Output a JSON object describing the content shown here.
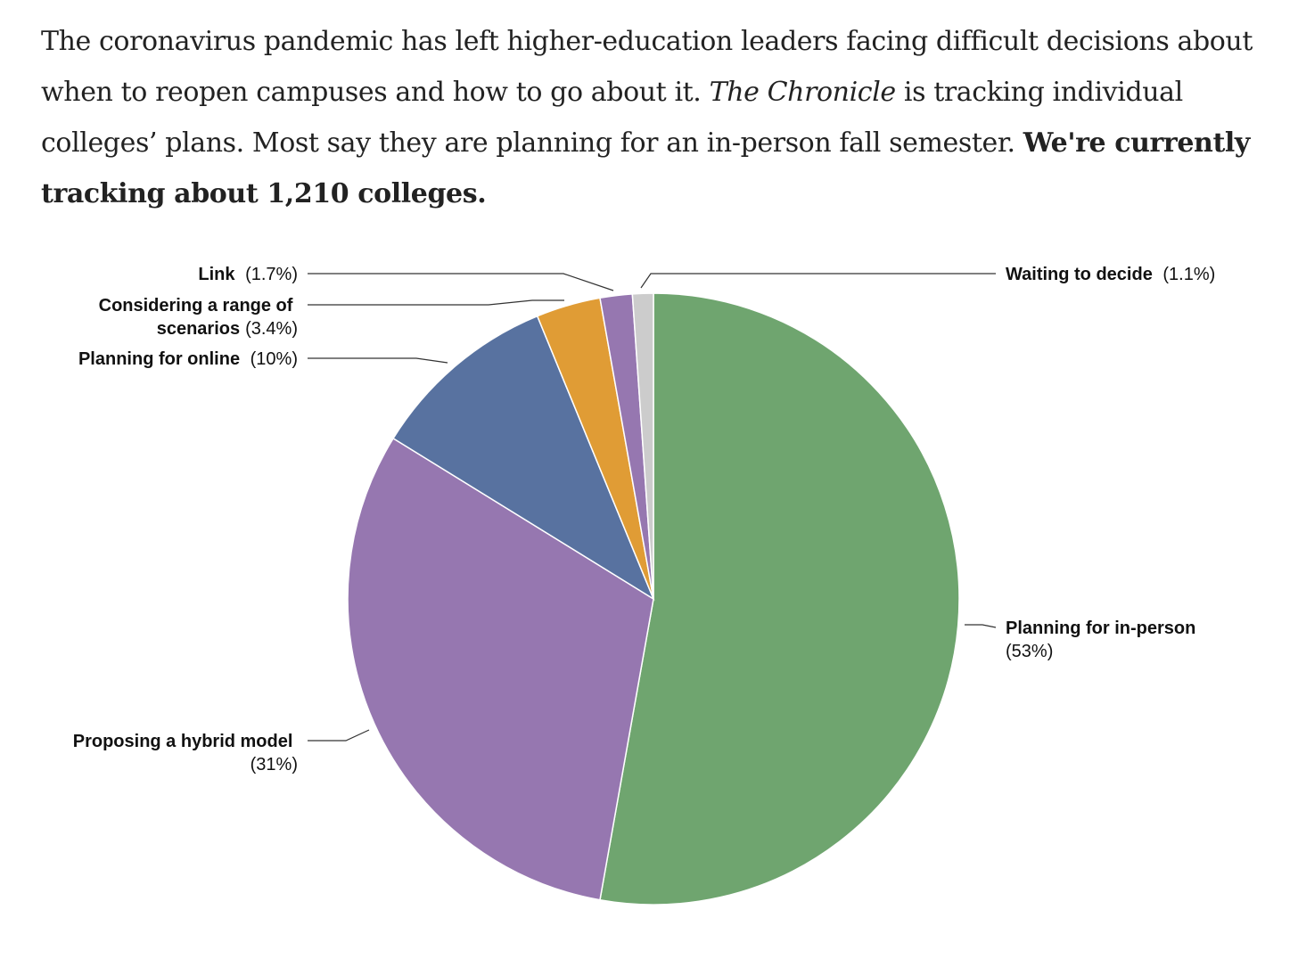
{
  "intro": {
    "part1": "The coronavirus pandemic has left higher-education leaders facing difficult decisions about when to reopen campuses and how to go about it. ",
    "publication": "The Chronicle",
    "part2": " is tracking individual colleges’ plans. Most say they are planning for an in-person fall semester. ",
    "emphasis": "We're currently tracking about 1,210 colleges."
  },
  "chart_data": {
    "type": "pie",
    "start_angle_deg": 0,
    "direction": "clockwise",
    "legend": "none",
    "slices": [
      {
        "key": "in_person",
        "label": "Planning for in-person",
        "pct_text": "(53%)",
        "value": 52.8,
        "color": "#6fa56f"
      },
      {
        "key": "hybrid",
        "label": "Proposing a hybrid model",
        "pct_text": "(31%)",
        "value": 31.0,
        "color": "#9677b0"
      },
      {
        "key": "online",
        "label": "Planning for online",
        "pct_text": "(10%)",
        "value": 10.0,
        "color": "#5872a0"
      },
      {
        "key": "range",
        "label": "Considering a range of scenarios",
        "label_line1": "Considering a range of",
        "label_line2": "scenarios",
        "pct_text": "(3.4%)",
        "value": 3.4,
        "color": "#e09c35"
      },
      {
        "key": "link",
        "label": "Link",
        "pct_text": "(1.7%)",
        "value": 1.7,
        "color": "#9677b0"
      },
      {
        "key": "waiting",
        "label": "Waiting to decide",
        "pct_text": "(1.1%)",
        "value": 1.1,
        "color": "#cccccc"
      }
    ]
  }
}
